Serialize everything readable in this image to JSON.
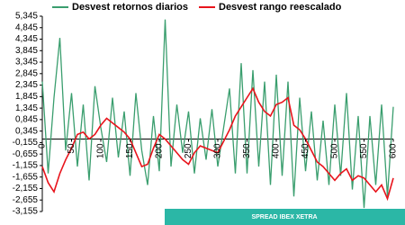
{
  "chart_data": {
    "type": "line",
    "annotation": "SPREAD IBEX XETRA",
    "x": [
      0,
      10,
      20,
      30,
      40,
      50,
      60,
      70,
      80,
      90,
      100,
      110,
      120,
      130,
      140,
      150,
      160,
      170,
      180,
      190,
      200,
      210,
      220,
      230,
      240,
      250,
      260,
      270,
      280,
      290,
      300,
      310,
      320,
      330,
      340,
      350,
      360,
      370,
      380,
      390,
      400,
      410,
      420,
      430,
      440,
      450,
      460,
      470,
      480,
      490,
      500,
      510,
      520,
      530,
      540,
      550,
      560,
      570,
      580,
      590,
      600
    ],
    "series": [
      {
        "name": "Desvest retornos diarios",
        "color": "#3a9e6e",
        "values": [
          2.5,
          -1.5,
          1.8,
          4.4,
          -0.5,
          2.0,
          -1.2,
          1.5,
          -1.8,
          2.3,
          0.5,
          -1.0,
          1.8,
          -0.8,
          1.2,
          -1.6,
          2.0,
          -0.5,
          -2.0,
          1.0,
          -1.4,
          5.2,
          -1.2,
          1.5,
          -0.6,
          1.2,
          -1.5,
          0.9,
          -0.9,
          1.3,
          -1.2,
          0.5,
          2.2,
          -1.5,
          3.3,
          -1.5,
          3.0,
          -1.2,
          2.5,
          -2.0,
          2.8,
          -1.6,
          2.5,
          -2.5,
          1.8,
          -1.4,
          1.2,
          -1.8,
          0.8,
          -2.0,
          1.5,
          -1.6,
          2.0,
          -2.2,
          1.0,
          -3.0,
          1.0,
          -2.0,
          1.5,
          -2.5,
          1.4
        ]
      },
      {
        "name": "Desvest rango reescalado",
        "color": "#e8141c",
        "values": [
          -1.2,
          -1.9,
          -2.3,
          -1.5,
          -0.9,
          -0.4,
          0.2,
          0.3,
          0.0,
          0.2,
          0.6,
          0.9,
          0.7,
          0.5,
          0.3,
          0.0,
          -0.6,
          -1.2,
          -1.1,
          -0.4,
          0.2,
          0.0,
          -0.3,
          -0.6,
          -0.9,
          -1.1,
          -0.6,
          -0.3,
          -0.4,
          -0.5,
          -0.6,
          -0.1,
          0.4,
          1.0,
          1.4,
          1.8,
          2.2,
          1.6,
          1.2,
          1.0,
          1.5,
          1.6,
          1.8,
          0.6,
          0.4,
          0.0,
          -0.5,
          -1.0,
          -1.2,
          -1.5,
          -1.8,
          -1.5,
          -1.3,
          -1.8,
          -1.6,
          -1.7,
          -2.0,
          -2.3,
          -2.0,
          -2.6,
          -1.7
        ]
      }
    ],
    "xlim": [
      0,
      600
    ],
    "xticks": [
      0,
      50,
      100,
      150,
      200,
      250,
      300,
      350,
      400,
      450,
      500,
      550,
      600
    ],
    "ylim": [
      -3.155,
      5.345
    ],
    "yticks": [
      {
        "value": -3.155,
        "label": "-3,155"
      },
      {
        "value": -2.655,
        "label": "-2,655"
      },
      {
        "value": -2.155,
        "label": "-2,155"
      },
      {
        "value": -1.655,
        "label": "-1,655"
      },
      {
        "value": -1.155,
        "label": "-1,155"
      },
      {
        "value": -0.655,
        "label": "-0,655"
      },
      {
        "value": -0.155,
        "label": "-0,155"
      },
      {
        "value": 0.345,
        "label": "0,345"
      },
      {
        "value": 0.845,
        "label": "0,845"
      },
      {
        "value": 1.345,
        "label": "1,345"
      },
      {
        "value": 1.845,
        "label": "1,845"
      },
      {
        "value": 2.345,
        "label": "2,345"
      },
      {
        "value": 2.845,
        "label": "2,845"
      },
      {
        "value": 3.345,
        "label": "3,345"
      },
      {
        "value": 3.845,
        "label": "3,845"
      },
      {
        "value": 4.345,
        "label": "4,345"
      },
      {
        "value": 4.845,
        "label": "4,845"
      },
      {
        "value": 5.345,
        "label": "5,345"
      }
    ],
    "grid": false,
    "legend": "top"
  }
}
